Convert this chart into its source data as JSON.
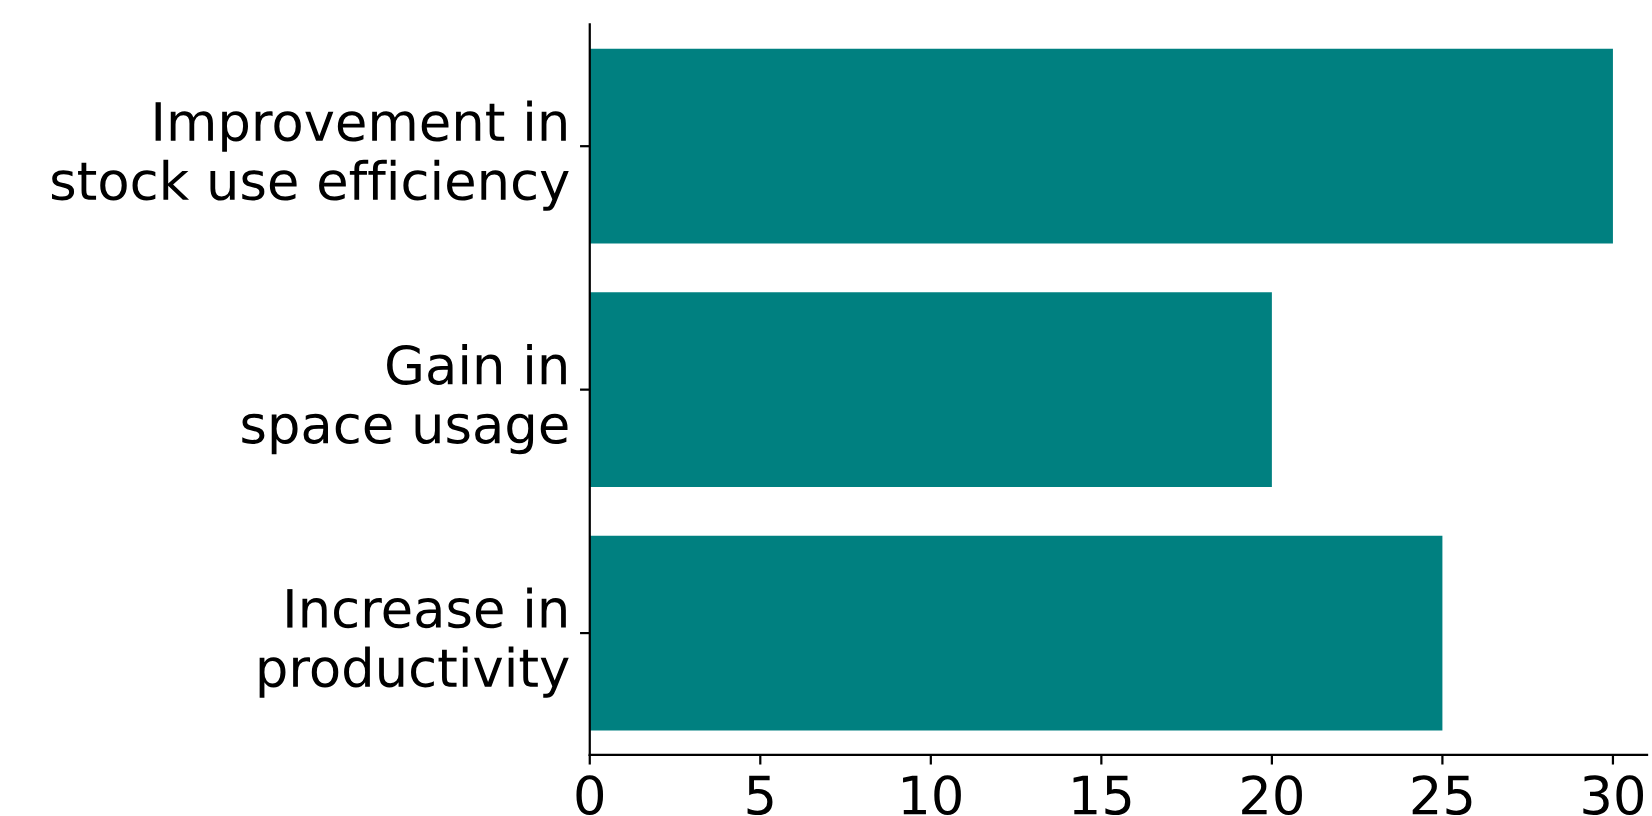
{
  "chart_data": {
    "type": "bar",
    "orientation": "horizontal",
    "categories": [
      "Improvement in\nstock use efficiency",
      "Gain in\nspace usage",
      "Increase in\nproductivity"
    ],
    "values": [
      30,
      20,
      25
    ],
    "color": "#008080",
    "xlim": [
      0,
      31
    ],
    "xticks": [
      0,
      5,
      10,
      15,
      20,
      25,
      30
    ],
    "grid": false,
    "legend": false
  }
}
